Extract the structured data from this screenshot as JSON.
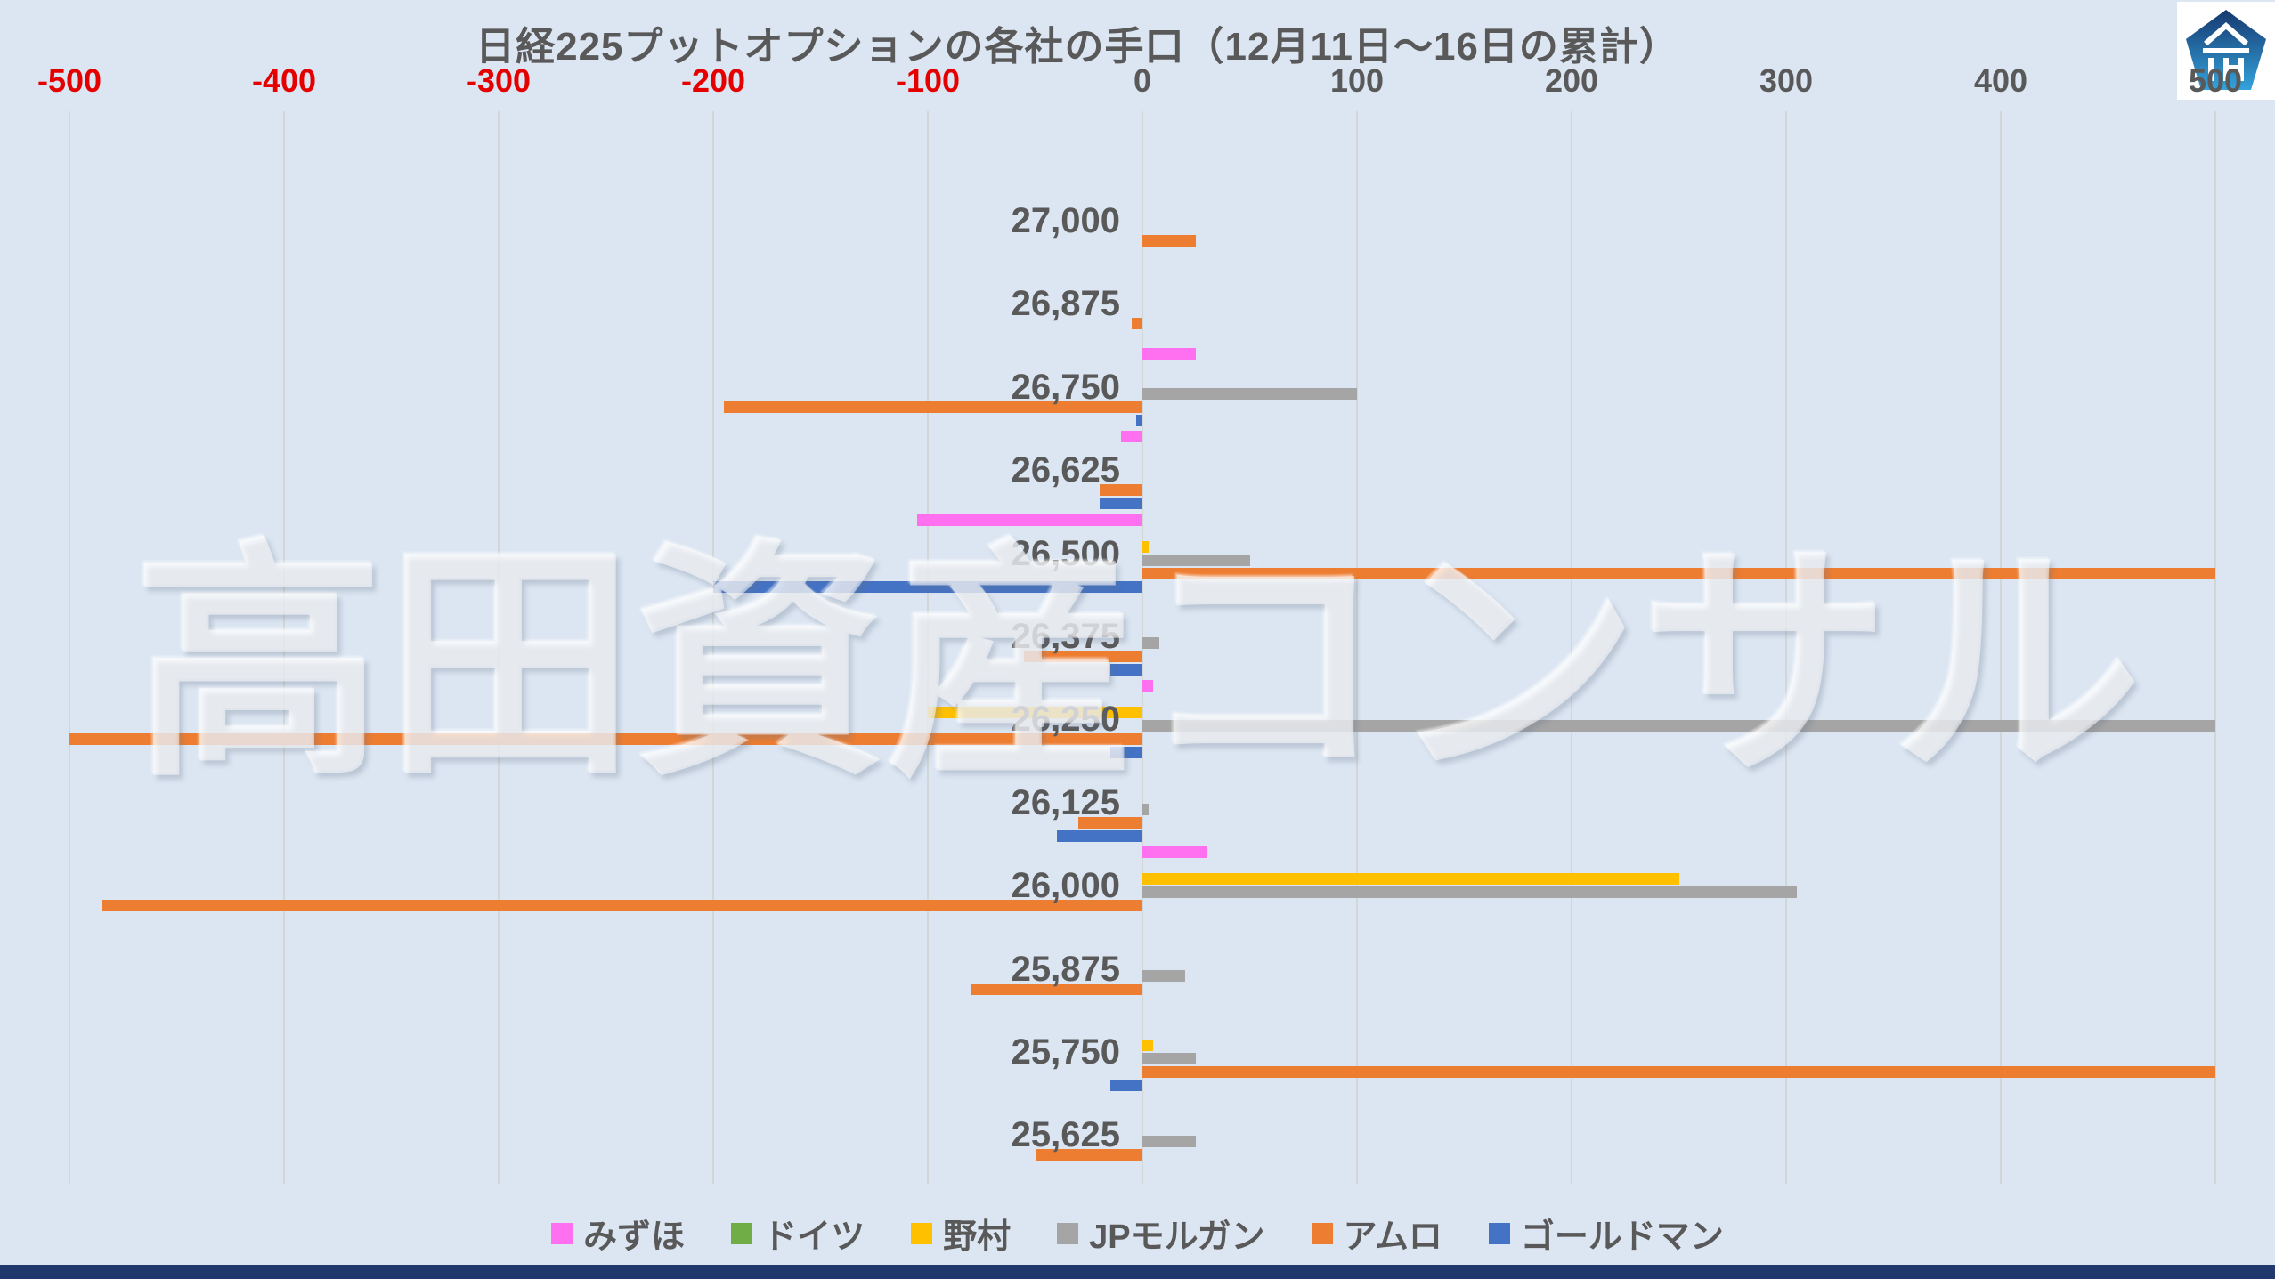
{
  "title": "日経225プットオプションの各社の手口（12月11日～16日の累計）",
  "watermark": "高田資産コンサル",
  "colors": {
    "background": "#dce6f2",
    "text_gray": "#595959",
    "negative_tick": "#e50000",
    "gridline": "#d2d6d6",
    "bottom_bar": "#20386b",
    "logo_blue_top": "#16386f",
    "logo_blue_bottom": "#34a3dc"
  },
  "chart_data": {
    "type": "bar",
    "orientation": "horizontal",
    "title": "日経225プットオプションの各社の手口（12月11日～16日の累計）",
    "xlabel": "",
    "ylabel": "",
    "xlim": [
      -500,
      500
    ],
    "x_ticks": [
      -500,
      -400,
      -300,
      -200,
      -100,
      0,
      100,
      200,
      300,
      400,
      500
    ],
    "grid": true,
    "legend_position": "bottom",
    "categories": [
      "27,000",
      "26,875",
      "26,750",
      "26,625",
      "26,500",
      "26,375",
      "26,250",
      "26,125",
      "26,000",
      "25,875",
      "25,750",
      "25,625"
    ],
    "series": [
      {
        "name": "みずほ",
        "color": "#ff70f0",
        "values": [
          0,
          0,
          25,
          -10,
          -105,
          0,
          5,
          0,
          30,
          0,
          0,
          0
        ]
      },
      {
        "name": "ドイツ",
        "color": "#70ad47",
        "values": [
          0,
          0,
          0,
          0,
          0,
          0,
          0,
          0,
          0,
          0,
          0,
          0
        ]
      },
      {
        "name": "野村",
        "color": "#ffc000",
        "values": [
          0,
          0,
          0,
          0,
          3,
          0,
          -100,
          0,
          250,
          0,
          5,
          0
        ]
      },
      {
        "name": "JPモルガン",
        "color": "#a5a5a5",
        "values": [
          0,
          0,
          100,
          0,
          50,
          8,
          500,
          3,
          305,
          20,
          25,
          25
        ]
      },
      {
        "name": "アムロ",
        "color": "#ed7d31",
        "values": [
          25,
          -5,
          -195,
          -20,
          500,
          -55,
          -500,
          -30,
          -485,
          -80,
          500,
          -50
        ]
      },
      {
        "name": "ゴールドマン",
        "color": "#4472c4",
        "values": [
          0,
          0,
          -3,
          -20,
          -200,
          -15,
          -15,
          -40,
          0,
          0,
          -15,
          0
        ]
      }
    ]
  }
}
